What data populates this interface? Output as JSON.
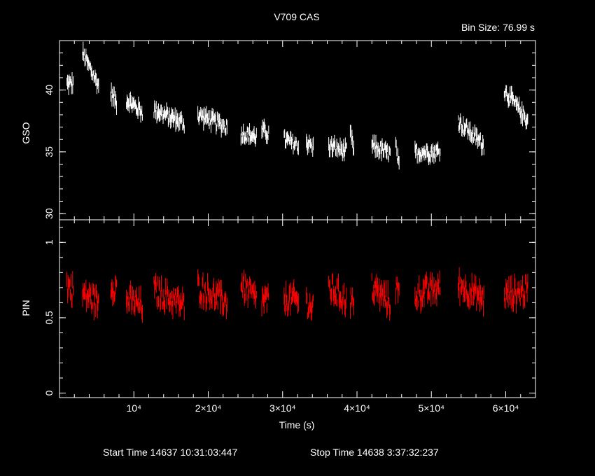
{
  "title": "V709 CAS",
  "subtitle": "Bin Size: 76.99 s",
  "xlabel": "Time (s)",
  "footer": {
    "start_label": "Start Time 14637 10:31:03:447",
    "stop_label": "Stop Time 14638  3:37:32:237"
  },
  "colors": {
    "background": "#000000",
    "axes": "#ffffff",
    "gso": "#ffffff",
    "pin": "#ff0000"
  },
  "chart_data": [
    {
      "type": "scatter",
      "panel": "top",
      "ylabel": "GSO",
      "xlim": [
        0,
        64000
      ],
      "ylim": [
        29.5,
        44
      ],
      "yticks": [
        30,
        35,
        40
      ],
      "xticks": [
        10000,
        20000,
        30000,
        40000,
        50000,
        60000
      ],
      "grid": false,
      "series": [
        {
          "color": "#ffffff",
          "segments": [
            {
              "x": [
                1000,
                1900
              ],
              "y": [
                40.5,
                40.5
              ]
            },
            {
              "x": [
                3100,
                5300
              ],
              "y": [
                43.0,
                40.3
              ]
            },
            {
              "x": [
                6900,
                7700
              ],
              "y": [
                39.8,
                39.0
              ]
            },
            {
              "x": [
                9000,
                11200
              ],
              "y": [
                39.2,
                38.2
              ]
            },
            {
              "x": [
                12700,
                16800
              ],
              "y": [
                38.4,
                37.3
              ]
            },
            {
              "x": [
                18600,
                22600
              ],
              "y": [
                38.0,
                37.0
              ]
            },
            {
              "x": [
                24400,
                26500
              ],
              "y": [
                36.5,
                36.2
              ]
            },
            {
              "x": [
                27200,
                28200
              ],
              "y": [
                36.7,
                36.5
              ]
            },
            {
              "x": [
                30200,
                32200
              ],
              "y": [
                36.0,
                35.5
              ]
            },
            {
              "x": [
                33200,
                34200
              ],
              "y": [
                35.8,
                35.3
              ]
            },
            {
              "x": [
                36200,
                38600
              ],
              "y": [
                35.5,
                35.0
              ]
            },
            {
              "x": [
                39100,
                39600
              ],
              "y": [
                36.5,
                35.0
              ]
            },
            {
              "x": [
                42000,
                44500
              ],
              "y": [
                35.5,
                34.8
              ]
            },
            {
              "x": [
                45200,
                45700
              ],
              "y": [
                35.5,
                33.5
              ]
            },
            {
              "x": [
                47800,
                51200
              ],
              "y": [
                35.0,
                35.0
              ]
            },
            {
              "x": [
                53600,
                57100
              ],
              "y": [
                37.5,
                35.5
              ]
            },
            {
              "x": [
                59800,
                63000
              ],
              "y": [
                40.0,
                37.5
              ]
            }
          ]
        }
      ]
    },
    {
      "type": "scatter",
      "panel": "bottom",
      "ylabel": "PIN",
      "xlim": [
        0,
        64000
      ],
      "ylim": [
        -0.03,
        1.15
      ],
      "yticks": [
        0,
        0.5,
        1
      ],
      "xticks": [
        10000,
        20000,
        30000,
        40000,
        50000,
        60000
      ],
      "xticklabels": [
        "10⁴",
        "2×10⁴",
        "3×10⁴",
        "4×10⁴",
        "5×10⁴",
        "6×10⁴"
      ],
      "grid": false,
      "series": [
        {
          "color": "#ff0000",
          "segments": [
            {
              "x": [
                1000,
                1900
              ],
              "y": [
                0.72,
                0.68
              ]
            },
            {
              "x": [
                3100,
                5300
              ],
              "y": [
                0.66,
                0.6
              ]
            },
            {
              "x": [
                6900,
                7700
              ],
              "y": [
                0.72,
                0.7
              ]
            },
            {
              "x": [
                9000,
                11200
              ],
              "y": [
                0.62,
                0.58
              ]
            },
            {
              "x": [
                12700,
                16800
              ],
              "y": [
                0.68,
                0.58
              ]
            },
            {
              "x": [
                18600,
                22600
              ],
              "y": [
                0.7,
                0.6
              ]
            },
            {
              "x": [
                24400,
                26500
              ],
              "y": [
                0.72,
                0.62
              ]
            },
            {
              "x": [
                27200,
                28200
              ],
              "y": [
                0.62,
                0.6
              ]
            },
            {
              "x": [
                30200,
                32200
              ],
              "y": [
                0.62,
                0.62
              ]
            },
            {
              "x": [
                33200,
                34200
              ],
              "y": [
                0.6,
                0.55
              ]
            },
            {
              "x": [
                36200,
                38600
              ],
              "y": [
                0.7,
                0.62
              ]
            },
            {
              "x": [
                39100,
                39600
              ],
              "y": [
                0.62,
                0.58
              ]
            },
            {
              "x": [
                42000,
                44500
              ],
              "y": [
                0.7,
                0.6
              ]
            },
            {
              "x": [
                45200,
                45700
              ],
              "y": [
                0.7,
                0.65
              ]
            },
            {
              "x": [
                47800,
                51200
              ],
              "y": [
                0.65,
                0.7
              ]
            },
            {
              "x": [
                53600,
                57100
              ],
              "y": [
                0.72,
                0.62
              ]
            },
            {
              "x": [
                59800,
                63000
              ],
              "y": [
                0.65,
                0.68
              ]
            }
          ]
        }
      ]
    }
  ]
}
